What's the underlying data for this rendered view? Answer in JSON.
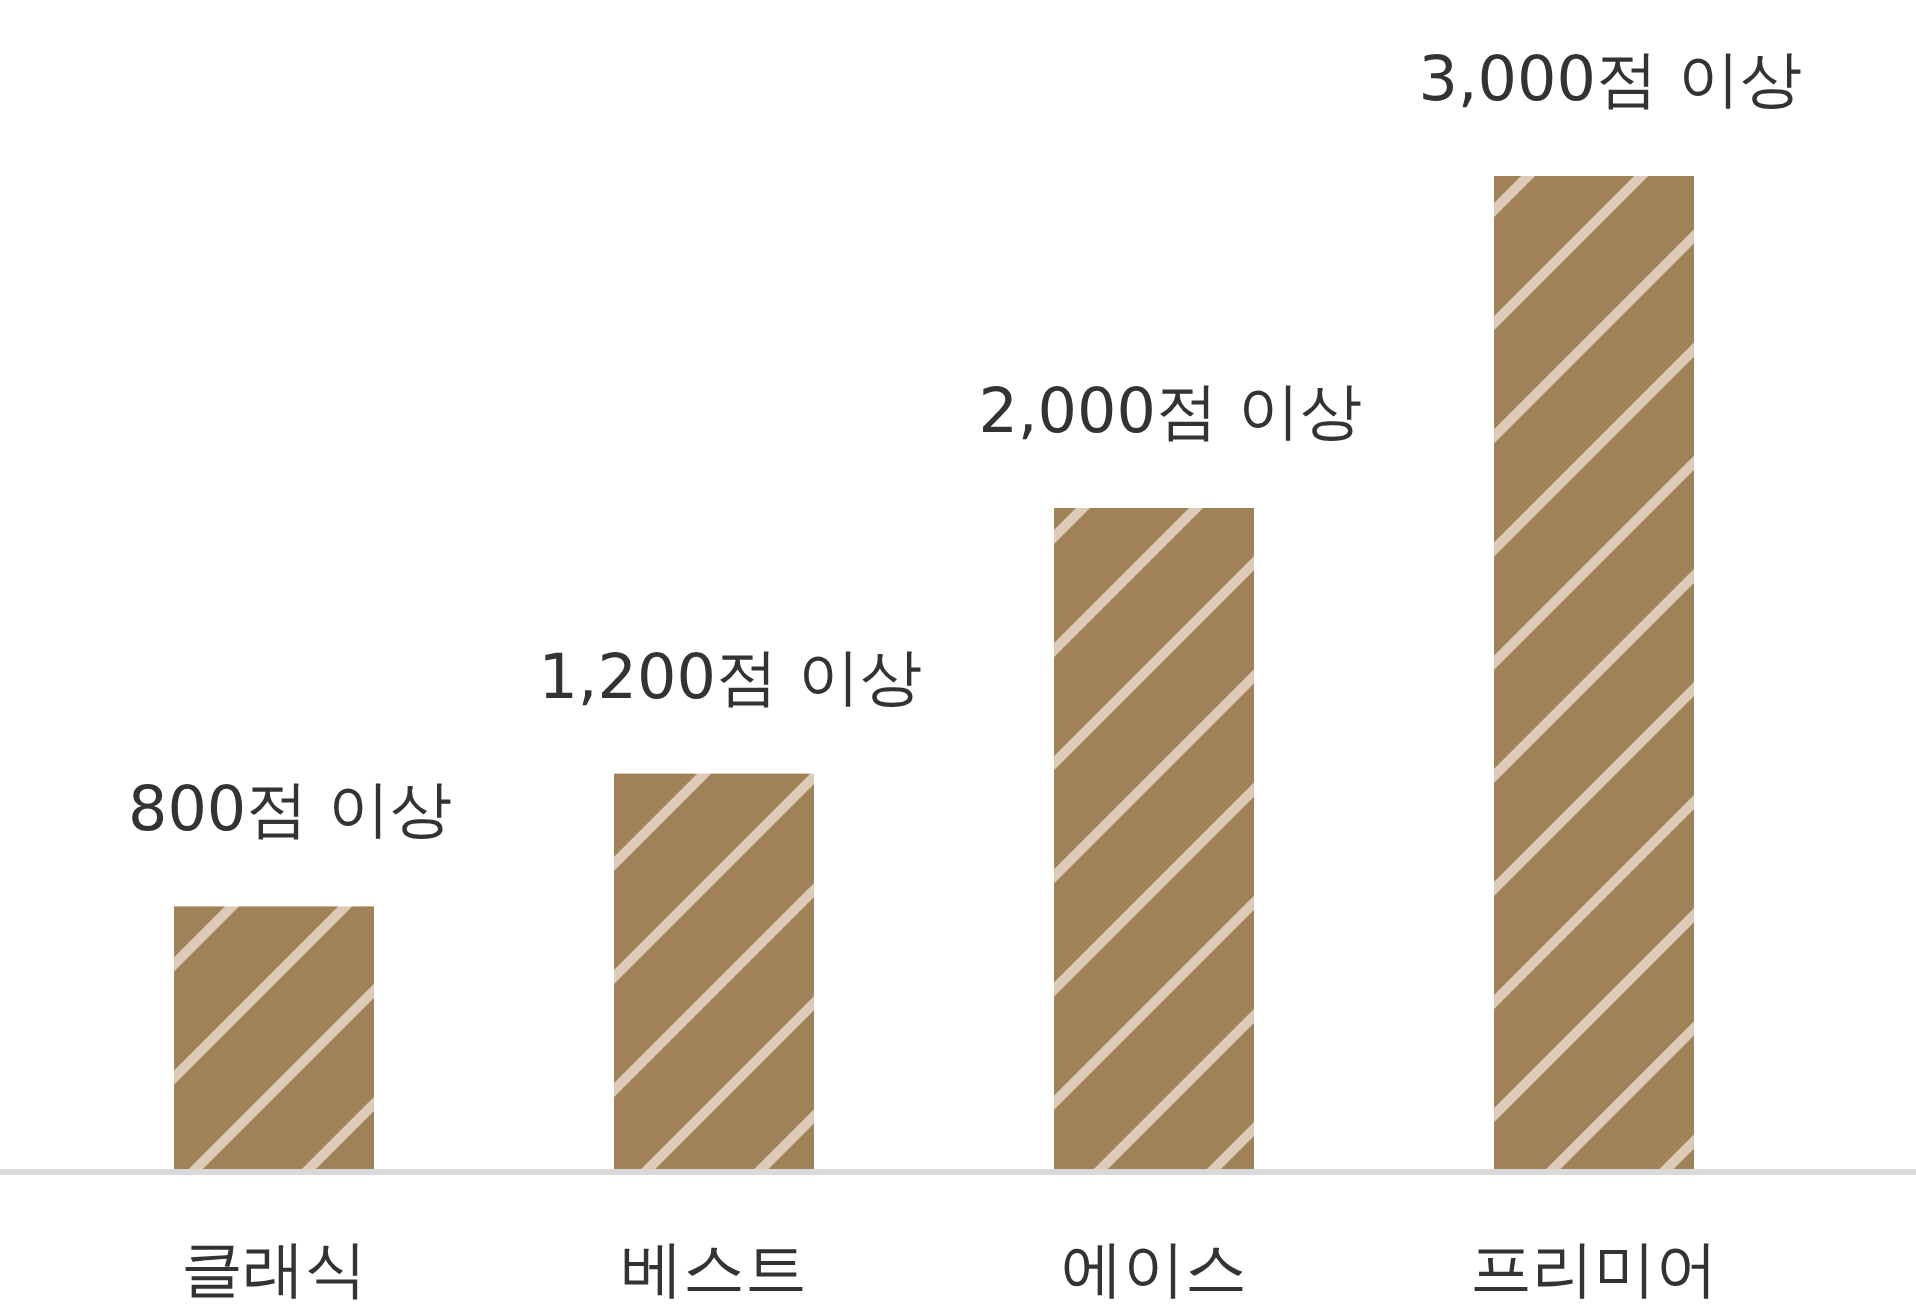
{
  "chart_data": {
    "type": "bar",
    "categories": [
      "클래식",
      "베스트",
      "에이스",
      "프리미어"
    ],
    "values": [
      800,
      1200,
      2000,
      3000
    ],
    "value_labels": [
      "800점 이상",
      "1,200점 이상",
      "2,000점 이상",
      "3,000점 이상"
    ],
    "color": "#a08158"
  }
}
